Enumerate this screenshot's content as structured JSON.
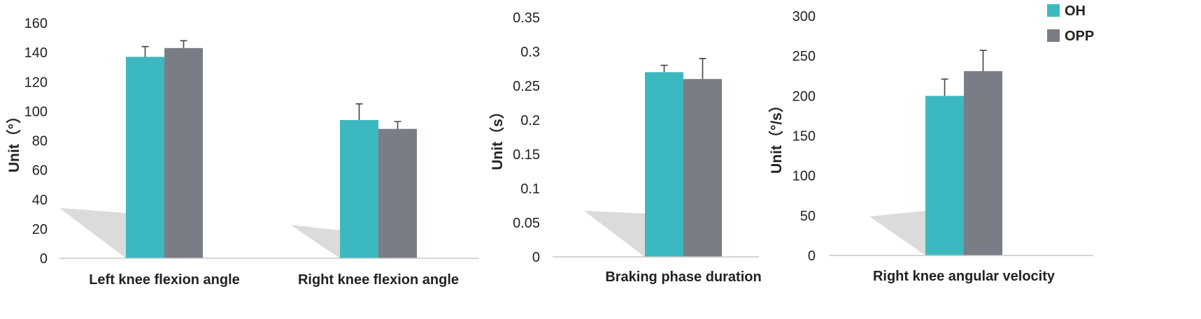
{
  "colors": {
    "OH": "#3bb8c0",
    "OPP": "#7a7d85",
    "shadow": "#d2d2d2"
  },
  "legend": [
    {
      "name": "OH",
      "color": "#3bb8c0"
    },
    {
      "name": "OPP",
      "color": "#7a7d85"
    }
  ],
  "chart_data": [
    {
      "type": "bar",
      "ylabel": "Unit（°）",
      "ylim": [
        0,
        160
      ],
      "yticks": [
        "0",
        "20",
        "40",
        "60",
        "80",
        "100",
        "120",
        "140",
        "160"
      ],
      "categories": [
        "Left knee flexion angle",
        "Right knee flexion angle"
      ],
      "series": [
        {
          "name": "OH",
          "values": [
            137,
            94
          ],
          "errors": [
            7,
            11
          ]
        },
        {
          "name": "OPP",
          "values": [
            143,
            88
          ],
          "errors": [
            5,
            5
          ]
        }
      ]
    },
    {
      "type": "bar",
      "ylabel": "Unit（s）",
      "ylim": [
        0,
        0.35
      ],
      "yticks": [
        "0",
        "0.05",
        "0.1",
        "0.15",
        "0.2",
        "0.25",
        "0.3",
        "0.35"
      ],
      "categories": [
        "Braking phase duration"
      ],
      "series": [
        {
          "name": "OH",
          "values": [
            0.27
          ],
          "errors": [
            0.01
          ]
        },
        {
          "name": "OPP",
          "values": [
            0.26
          ],
          "errors": [
            0.03
          ]
        }
      ]
    },
    {
      "type": "bar",
      "ylabel": "Unit（°/s）",
      "ylim": [
        0,
        300
      ],
      "yticks": [
        "0",
        "50",
        "100",
        "150",
        "200",
        "250",
        "300"
      ],
      "categories": [
        "Right knee angular velocity"
      ],
      "series": [
        {
          "name": "OH",
          "values": [
            200
          ],
          "errors": [
            21
          ]
        },
        {
          "name": "OPP",
          "values": [
            231
          ],
          "errors": [
            26
          ]
        }
      ]
    }
  ]
}
